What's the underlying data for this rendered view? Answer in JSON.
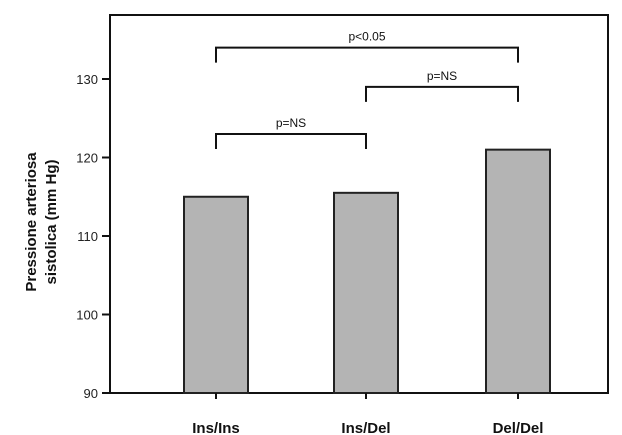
{
  "chart_data": {
    "type": "bar",
    "categories": [
      "Ins/Ins",
      "Ins/Del",
      "Del/Del"
    ],
    "values": [
      115,
      115.5,
      121
    ],
    "ylabel_lines": [
      "Pressione arteriosa",
      "sistolica (mm Hg)"
    ],
    "ylim": [
      90,
      137
    ],
    "yticks": [
      90,
      100,
      110,
      120,
      130
    ],
    "grid": false,
    "colors": {
      "bar_fill": "#b4b4b4",
      "bar_stroke": "#222222",
      "axis": "#111111"
    },
    "significance": [
      {
        "from": "Ins/Ins",
        "to": "Ins/Del",
        "label": "p=NS",
        "y": 123
      },
      {
        "from": "Ins/Del",
        "to": "Del/Del",
        "label": "p=NS",
        "y": 129
      },
      {
        "from": "Ins/Ins",
        "to": "Del/Del",
        "label": "p<0.05",
        "y": 134
      }
    ]
  }
}
